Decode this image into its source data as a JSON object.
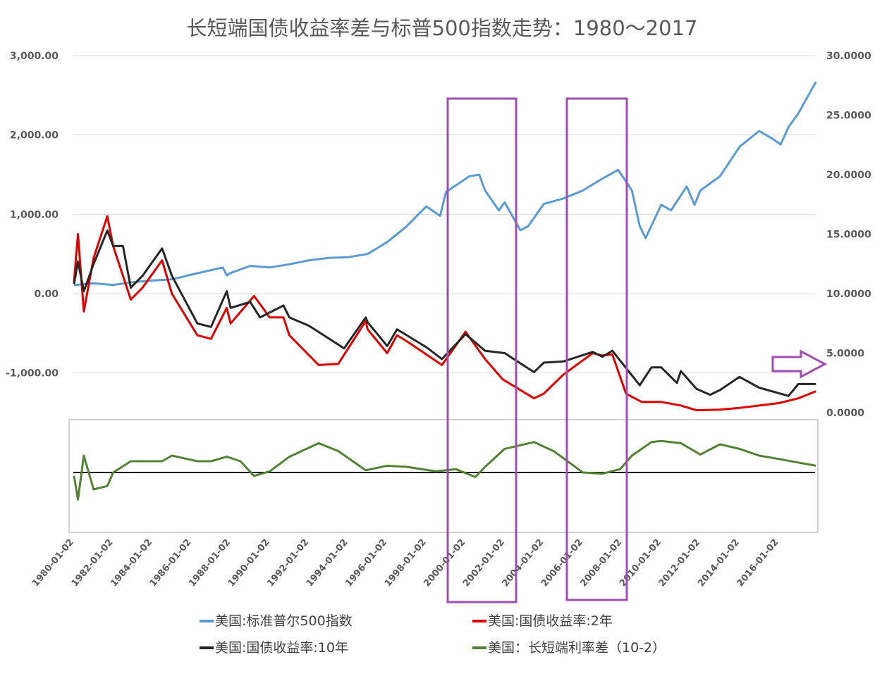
{
  "chart_data": {
    "type": "line",
    "title": "长短端国债收益率差与标普500指数走势：1980～2017",
    "left_axis": {
      "ylim": [
        -1000,
        3000
      ],
      "ticks": [
        "3,000.00",
        "2,000.00",
        "1,000.00",
        "0.00",
        "-1,000.00"
      ],
      "tick_values": [
        3000,
        2000,
        1000,
        0,
        -1000
      ]
    },
    "right_axis": {
      "ylim": [
        0,
        30
      ],
      "ticks": [
        "30.0000",
        "25.0000",
        "20.0000",
        "15.0000",
        "10.0000",
        "5.0000",
        "0.0000"
      ],
      "tick_values": [
        30,
        25,
        20,
        15,
        10,
        5,
        0
      ]
    },
    "x_ticks": [
      "1980-01-02",
      "1982-01-02",
      "1984-01-02",
      "1986-01-02",
      "1988-01-02",
      "1990-01-02",
      "1992-01-02",
      "1994-01-02",
      "1996-01-02",
      "1998-01-02",
      "2000-01-02",
      "2002-01-02",
      "2004-01-02",
      "2006-01-02",
      "2008-01-02",
      "2010-01-02",
      "2012-01-02",
      "2014-01-02",
      "2016-01-02"
    ],
    "xlim": [
      1980,
      2018
    ],
    "legend_position": "bottom",
    "series": [
      {
        "name": "美国:标准普尔500指数",
        "axis": "left",
        "panel": "top",
        "color": "#5B9BD5",
        "points": [
          [
            1980,
            107
          ],
          [
            1981,
            130
          ],
          [
            1982,
            110
          ],
          [
            1983,
            145
          ],
          [
            1984,
            165
          ],
          [
            1985,
            180
          ],
          [
            1986,
            240
          ],
          [
            1987.6,
            330
          ],
          [
            1987.8,
            230
          ],
          [
            1988,
            260
          ],
          [
            1989,
            350
          ],
          [
            1990,
            330
          ],
          [
            1991,
            370
          ],
          [
            1992,
            420
          ],
          [
            1993,
            450
          ],
          [
            1994,
            460
          ],
          [
            1995,
            500
          ],
          [
            1996,
            650
          ],
          [
            1997,
            850
          ],
          [
            1998,
            1100
          ],
          [
            1998.7,
            980
          ],
          [
            1999,
            1280
          ],
          [
            2000.2,
            1480
          ],
          [
            2000.7,
            1500
          ],
          [
            2001,
            1300
          ],
          [
            2001.7,
            1050
          ],
          [
            2002,
            1150
          ],
          [
            2002.8,
            800
          ],
          [
            2003.2,
            850
          ],
          [
            2004,
            1130
          ],
          [
            2005,
            1200
          ],
          [
            2006,
            1300
          ],
          [
            2007,
            1450
          ],
          [
            2007.8,
            1560
          ],
          [
            2008.5,
            1300
          ],
          [
            2008.9,
            850
          ],
          [
            2009.2,
            700
          ],
          [
            2010,
            1120
          ],
          [
            2010.5,
            1050
          ],
          [
            2011.3,
            1350
          ],
          [
            2011.7,
            1120
          ],
          [
            2012,
            1300
          ],
          [
            2013,
            1480
          ],
          [
            2014,
            1850
          ],
          [
            2015,
            2050
          ],
          [
            2015.7,
            1950
          ],
          [
            2016.1,
            1880
          ],
          [
            2016.5,
            2100
          ],
          [
            2017,
            2270
          ],
          [
            2017.9,
            2670
          ]
        ]
      },
      {
        "name": "美国:国债收益率:2年",
        "axis": "right",
        "panel": "top",
        "color": "#E00000",
        "points": [
          [
            1980,
            11
          ],
          [
            1980.2,
            15
          ],
          [
            1980.5,
            8.5
          ],
          [
            1981,
            13
          ],
          [
            1981.7,
            16.5
          ],
          [
            1982,
            14
          ],
          [
            1982.9,
            9.5
          ],
          [
            1983.5,
            10.5
          ],
          [
            1984.5,
            12.8
          ],
          [
            1985,
            10
          ],
          [
            1986.3,
            6.5
          ],
          [
            1987,
            6.2
          ],
          [
            1987.8,
            8.8
          ],
          [
            1988,
            7.5
          ],
          [
            1989.2,
            9.8
          ],
          [
            1990,
            8
          ],
          [
            1990.7,
            8
          ],
          [
            1991,
            6.5
          ],
          [
            1992.5,
            4
          ],
          [
            1993.5,
            4.1
          ],
          [
            1994.9,
            7.7
          ],
          [
            1995,
            7
          ],
          [
            1996,
            5
          ],
          [
            1996.5,
            6.5
          ],
          [
            1997,
            6
          ],
          [
            1998.8,
            4
          ],
          [
            2000,
            6.8
          ],
          [
            2001,
            4.5
          ],
          [
            2001.9,
            2.8
          ],
          [
            2003.5,
            1.2
          ],
          [
            2004,
            1.6
          ],
          [
            2005,
            3.2
          ],
          [
            2006.5,
            5
          ],
          [
            2007,
            4.8
          ],
          [
            2007.5,
            4.9
          ],
          [
            2008.2,
            1.6
          ],
          [
            2009,
            0.9
          ],
          [
            2010,
            0.9
          ],
          [
            2011,
            0.6
          ],
          [
            2011.8,
            0.2
          ],
          [
            2013,
            0.25
          ],
          [
            2014,
            0.4
          ],
          [
            2015,
            0.6
          ],
          [
            2016,
            0.8
          ],
          [
            2017,
            1.2
          ],
          [
            2017.9,
            1.8
          ]
        ]
      },
      {
        "name": "美国:国债收益率:10年",
        "axis": "right",
        "panel": "top",
        "color": "#262626",
        "points": [
          [
            1980,
            10.8
          ],
          [
            1980.2,
            12.7
          ],
          [
            1980.5,
            10.2
          ],
          [
            1981,
            12.5
          ],
          [
            1981.7,
            15.3
          ],
          [
            1982,
            14
          ],
          [
            1982.5,
            14
          ],
          [
            1982.9,
            10.5
          ],
          [
            1983.5,
            11.5
          ],
          [
            1984.5,
            13.8
          ],
          [
            1985,
            11.5
          ],
          [
            1986.3,
            7.5
          ],
          [
            1987,
            7.2
          ],
          [
            1987.8,
            10.2
          ],
          [
            1988,
            8.8
          ],
          [
            1989,
            9.3
          ],
          [
            1989.5,
            8
          ],
          [
            1990.7,
            9
          ],
          [
            1991,
            8
          ],
          [
            1992,
            7.3
          ],
          [
            1993.8,
            5.4
          ],
          [
            1994.9,
            8
          ],
          [
            1995,
            7.6
          ],
          [
            1996,
            5.6
          ],
          [
            1996.5,
            7
          ],
          [
            1997,
            6.5
          ],
          [
            1998,
            5.5
          ],
          [
            1998.8,
            4.5
          ],
          [
            2000,
            6.6
          ],
          [
            2001,
            5.2
          ],
          [
            2002,
            5
          ],
          [
            2003.5,
            3.4
          ],
          [
            2004,
            4.2
          ],
          [
            2005,
            4.3
          ],
          [
            2006.5,
            5.1
          ],
          [
            2007,
            4.7
          ],
          [
            2007.5,
            5.2
          ],
          [
            2008.9,
            2.3
          ],
          [
            2009.5,
            3.8
          ],
          [
            2010,
            3.8
          ],
          [
            2010.8,
            2.5
          ],
          [
            2011,
            3.5
          ],
          [
            2011.8,
            2
          ],
          [
            2012.5,
            1.5
          ],
          [
            2013,
            1.9
          ],
          [
            2014,
            3
          ],
          [
            2015,
            2.1
          ],
          [
            2016.5,
            1.4
          ],
          [
            2017,
            2.4
          ],
          [
            2017.9,
            2.4
          ]
        ]
      },
      {
        "name": "美国：长短端利率差（10-2）",
        "axis": "spread",
        "panel": "bottom",
        "color": "#548235",
        "points": [
          [
            1980,
            -0.3
          ],
          [
            1980.2,
            -2.4
          ],
          [
            1980.5,
            1.5
          ],
          [
            1981,
            -1.5
          ],
          [
            1981.7,
            -1.2
          ],
          [
            1982,
            0
          ],
          [
            1982.9,
            1
          ],
          [
            1983.5,
            1
          ],
          [
            1984.5,
            1
          ],
          [
            1985,
            1.5
          ],
          [
            1986.3,
            1
          ],
          [
            1987,
            1
          ],
          [
            1987.8,
            1.4
          ],
          [
            1988.5,
            1
          ],
          [
            1989.2,
            -0.3
          ],
          [
            1990,
            0.1
          ],
          [
            1991,
            1.4
          ],
          [
            1992.5,
            2.6
          ],
          [
            1993.5,
            1.9
          ],
          [
            1994.9,
            0.2
          ],
          [
            1996,
            0.6
          ],
          [
            1997,
            0.5
          ],
          [
            1998.5,
            0.1
          ],
          [
            1999.5,
            0.3
          ],
          [
            2000.5,
            -0.4
          ],
          [
            2001,
            0.5
          ],
          [
            2002,
            2.1
          ],
          [
            2003.5,
            2.7
          ],
          [
            2004.5,
            1.9
          ],
          [
            2006,
            0
          ],
          [
            2007,
            -0.1
          ],
          [
            2007.9,
            0.3
          ],
          [
            2008.5,
            1.5
          ],
          [
            2009.5,
            2.7
          ],
          [
            2010,
            2.8
          ],
          [
            2011,
            2.6
          ],
          [
            2012,
            1.6
          ],
          [
            2013,
            2.5
          ],
          [
            2014,
            2.1
          ],
          [
            2015,
            1.5
          ],
          [
            2016,
            1.2
          ],
          [
            2017.9,
            0.6
          ]
        ]
      }
    ],
    "annotations": {
      "highlight_color": "#9E4FB0",
      "highlight_periods": [
        [
          1999.3,
          2002.8
        ],
        [
          2005.4,
          2008.4
        ]
      ],
      "arrow": "right-axis-pointer"
    }
  }
}
